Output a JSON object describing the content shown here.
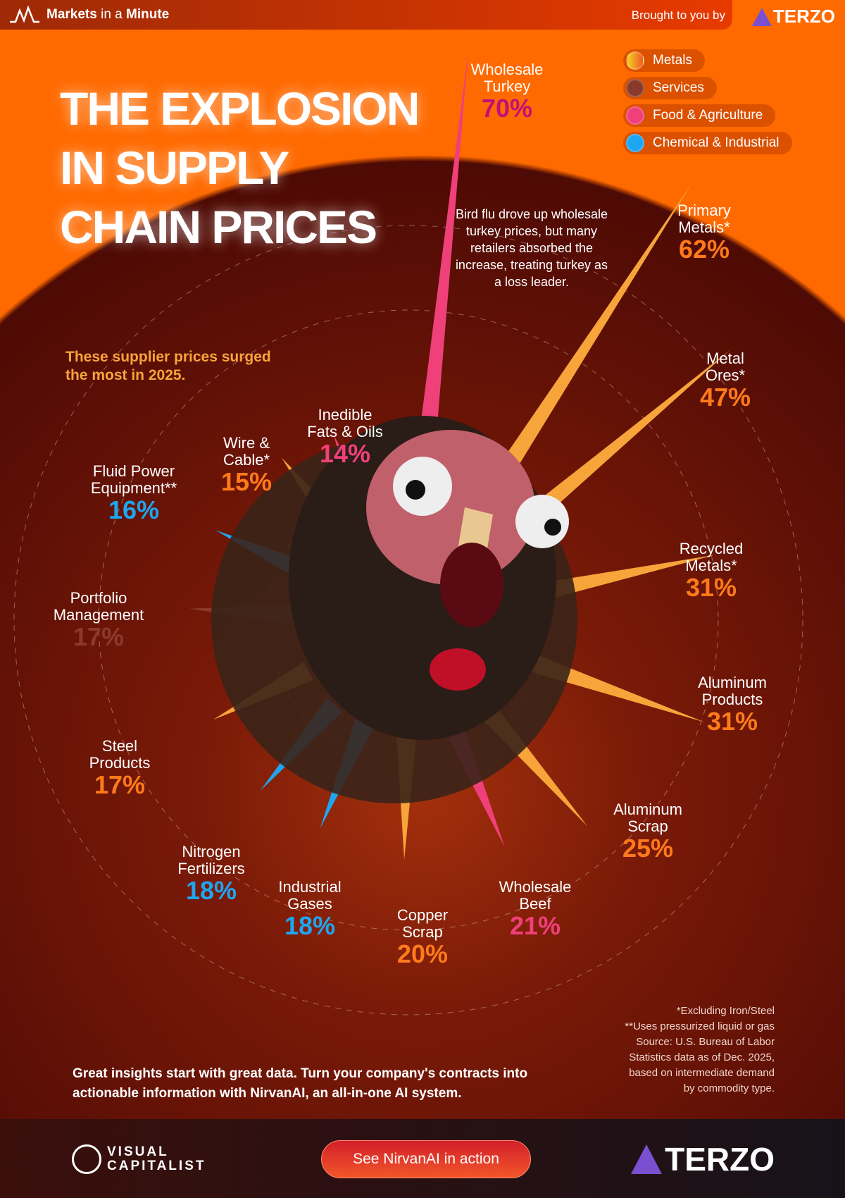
{
  "header": {
    "brand_bold": "Markets",
    "brand_light": "in a",
    "brand_bold2": "Minute",
    "brought_by": "Brought to you by",
    "sponsor": "TERZO"
  },
  "title": "THE EXPLOSION IN SUPPLY CHAIN PRICES",
  "subtitle": "These supplier prices surged the most in 2025.",
  "annotation": "Bird flu drove up wholesale turkey prices, but many retailers absorbed the increase, treating turkey as a loss leader.",
  "legend": [
    {
      "label": "Metals",
      "color": "#f7a43a"
    },
    {
      "label": "Services",
      "color": "#8a3a2a"
    },
    {
      "label": "Food & Agriculture",
      "color": "#f0407a"
    },
    {
      "label": "Chemical & Industrial",
      "color": "#1ea6f0"
    }
  ],
  "chart_data": {
    "type": "radial-bar",
    "unit": "%",
    "categories": [
      "Wholesale Turkey",
      "Primary Metals*",
      "Metal Ores*",
      "Recycled Metals*",
      "Aluminum Products",
      "Aluminum Scrap",
      "Wholesale Beef",
      "Copper Scrap",
      "Industrial Gases",
      "Nitrogen Fertilizers",
      "Steel Products",
      "Portfolio Management",
      "Fluid Power Equipment**",
      "Wire & Cable*",
      "Inedible Fats & Oils"
    ],
    "values": [
      70,
      62,
      47,
      31,
      31,
      25,
      21,
      20,
      18,
      18,
      17,
      17,
      16,
      15,
      14
    ],
    "groups": [
      "Food & Agriculture",
      "Metals",
      "Metals",
      "Metals",
      "Metals",
      "Metals",
      "Food & Agriculture",
      "Metals",
      "Chemical & Industrial",
      "Chemical & Industrial",
      "Metals",
      "Services",
      "Chemical & Industrial",
      "Metals",
      "Food & Agriculture"
    ]
  },
  "footnotes": [
    "*Excluding Iron/Steel",
    "**Uses pressurized liquid or gas",
    "Source: U.S. Bureau of Labor",
    "Statistics data as of Dec. 2025,",
    "based on intermediate demand",
    "by commodity type."
  ],
  "cta": "Great insights start with great data. Turn your company's contracts into actionable information with NirvanAI, an all-in-one AI system.",
  "bottom": {
    "vc_line1": "VISUAL",
    "vc_line2": "CAPITALIST",
    "button": "See NirvanAI in action",
    "sponsor": "TERZO"
  }
}
